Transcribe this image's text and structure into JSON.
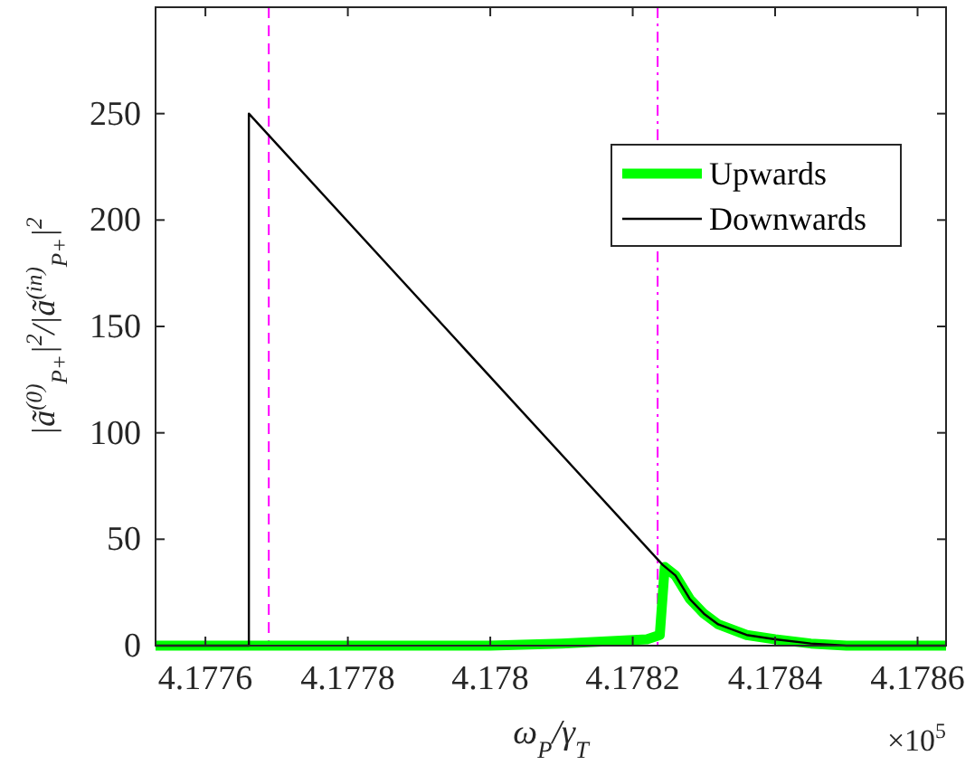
{
  "chart_data": {
    "type": "line",
    "xlabel": "ω$_{P}$/γ$_{T}$",
    "ylabel": "|ã$^{(0)}$$_{P+}$|$^{2}$/|ã$^{(in)}$$_{P+}$|$^{2}$",
    "annotations": [
      "×10$^{5}$"
    ],
    "xlim": [
      4.17753,
      4.17864
    ],
    "xticks": [
      4.1776,
      4.1778,
      4.178,
      4.1782,
      4.1784,
      4.1786
    ],
    "ylim": [
      0,
      300
    ],
    "yticks": [
      0,
      50,
      100,
      150,
      200,
      250
    ],
    "legend": "top right",
    "grid": false,
    "ref_lines": [
      {
        "axis": "x",
        "value": 4.177689,
        "color": "#ff00ff",
        "line_style": "dashed"
      },
      {
        "axis": "x",
        "value": 4.178235,
        "color": "#ff00ff",
        "line_style": "dashdot"
      }
    ],
    "series": [
      {
        "name": "Upwards",
        "color": "#00ff00",
        "x": [
          4.17753,
          4.178,
          4.1781,
          4.17822,
          4.178238,
          4.178245,
          4.17826,
          4.17828,
          4.1783,
          4.17832,
          4.17836,
          4.1784,
          4.17845,
          4.1785,
          4.17864
        ],
        "values": [
          0,
          0,
          1,
          3,
          5,
          37,
          33,
          22,
          15,
          10,
          5,
          3,
          1,
          0,
          0
        ]
      },
      {
        "name": "Downwards",
        "color": "#000000",
        "x": [
          4.17753,
          4.177661,
          4.177661,
          4.178242,
          4.17826,
          4.17828,
          4.1783,
          4.17832,
          4.17836,
          4.1784,
          4.17845,
          4.1785,
          4.17864
        ],
        "values": [
          0,
          0,
          250,
          38,
          33,
          22,
          15,
          10,
          5,
          3,
          1,
          0,
          0
        ]
      }
    ]
  }
}
